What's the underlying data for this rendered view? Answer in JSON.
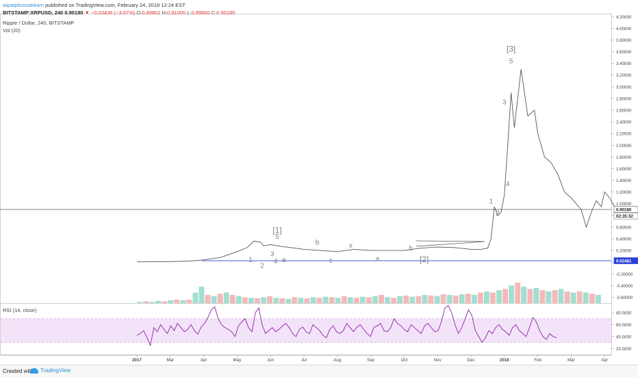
{
  "header": {
    "author": "wipatphossakkarn",
    "published": " published on TradingView.com, February 24, 2018 12:24 EST",
    "symbol": "BITSTAMP:XRPUSD, 240",
    "last": "0.90180",
    "change": "▼ −0.03436 (−3.67%)",
    "o_label": "O:",
    "o_value": "0.89801",
    "h_label": "H:",
    "h_value": "0.91000",
    "l_label": "L:",
    "l_value": "0.89600",
    "c_label": "C:",
    "c_value": "0.90180"
  },
  "main_pane": {
    "title": "Ripple / Dollar, 240, BITSTAMP",
    "volume_label": "Vol (20)"
  },
  "rsi_pane": {
    "title": "RSI (14, close)"
  },
  "footer": {
    "created_with": "Created with",
    "brand": "TradingView"
  },
  "colors": {
    "price_line": "#555555",
    "support_line": "#2a3fd6",
    "rsi_line": "#8e1ea8",
    "rsi_band": "#f3e3f8",
    "vol_up": "#82d4c2",
    "vol_down": "#f1a1a1",
    "wave_labels": "#808080"
  },
  "chart_data": [
    {
      "type": "line",
      "title": "Ripple / Dollar, 240, BITSTAMP",
      "x_ticks": [
        "2017",
        "Mar",
        "Apr",
        "May",
        "Jun",
        "Jul",
        "Aug",
        "Sep",
        "Oct",
        "Nov",
        "Dec",
        "2018",
        "Feb",
        "Mar",
        "Apr"
      ],
      "y_ticks": [
        "-0.60000",
        "-0.40000",
        "-0.20000",
        "0.00000",
        "0.20000",
        "0.40000",
        "0.60000",
        "0.80000",
        "1.00000",
        "1.20000",
        "1.40000",
        "1.60000",
        "1.80000",
        "2.00000",
        "2.20000",
        "2.40000",
        "2.60000",
        "2.80000",
        "3.00000",
        "3.20000",
        "3.40000",
        "3.60000",
        "3.80000",
        "4.00000",
        "4.20000"
      ],
      "ylim": [
        -0.7,
        4.25
      ],
      "series": [
        {
          "x": [
            0,
            0.6,
            1.0,
            1.6,
            2.0,
            2.5,
            3.0,
            3.3,
            3.5,
            3.7,
            3.8,
            4.0,
            4.3,
            4.6,
            5.0,
            5.5,
            6.0,
            6.5,
            7.0,
            7.5,
            8.0,
            8.5,
            9.0,
            9.5,
            10.0,
            10.3,
            10.5,
            10.6,
            10.7,
            10.8,
            10.9,
            11.0,
            11.1,
            11.2,
            11.3,
            11.5,
            11.7,
            11.9,
            12.0,
            12.2,
            12.4,
            12.6,
            12.8,
            13.0,
            13.15,
            13.3,
            13.45,
            13.6,
            13.75,
            13.9,
            14.0,
            14.15,
            14.3,
            14.45
          ],
          "values": [
            0.006,
            0.007,
            0.01,
            0.02,
            0.04,
            0.08,
            0.18,
            0.25,
            0.36,
            0.34,
            0.28,
            0.3,
            0.27,
            0.25,
            0.22,
            0.2,
            0.18,
            0.22,
            0.2,
            0.2,
            0.2,
            0.24,
            0.26,
            0.25,
            0.22,
            0.22,
            0.24,
            0.4,
            0.95,
            0.8,
            0.85,
            1.15,
            2.0,
            2.9,
            2.3,
            3.3,
            2.5,
            2.6,
            2.2,
            1.8,
            1.7,
            1.5,
            1.2,
            1.1,
            1.0,
            0.9,
            0.6,
            0.85,
            1.05,
            0.95,
            1.2,
            1.1,
            0.95,
            0.9018
          ]
        }
      ],
      "horizontal_lines": [
        {
          "label": "0.90180",
          "value": 0.9018,
          "color": "#555555"
        },
        {
          "label": "0.02481",
          "value": 0.02481,
          "color": "#2a3fd6"
        }
      ],
      "countdown": "02:35:32",
      "annotations": [
        {
          "text": "1",
          "x": 3.4,
          "y": 0.0
        },
        {
          "text": "2",
          "x": 3.75,
          "y": -0.1
        },
        {
          "text": "3",
          "x": 4.05,
          "y": 0.1
        },
        {
          "text": "4",
          "x": 4.15,
          "y": -0.02
        },
        {
          "text": "5",
          "x": 4.2,
          "y": 0.4
        },
        {
          "text": "[1]",
          "x": 4.2,
          "y": 0.5
        },
        {
          "text": "a",
          "x": 4.4,
          "y": 0.0
        },
        {
          "text": "b",
          "x": 5.4,
          "y": 0.3
        },
        {
          "text": "c",
          "x": 5.8,
          "y": -0.01
        },
        {
          "text": "x",
          "x": 6.4,
          "y": 0.25
        },
        {
          "text": "a",
          "x": 7.2,
          "y": 0.02
        },
        {
          "text": "b",
          "x": 8.2,
          "y": 0.2
        },
        {
          "text": "[2]",
          "x": 8.6,
          "y": 0.0
        },
        {
          "text": "1",
          "x": 10.6,
          "y": 1.0
        },
        {
          "text": "2",
          "x": 10.8,
          "y": 0.8
        },
        {
          "text": "3",
          "x": 11.0,
          "y": 2.7
        },
        {
          "text": "4",
          "x": 11.1,
          "y": 1.3
        },
        {
          "text": "5",
          "x": 11.2,
          "y": 3.4
        },
        {
          "text": "[3]",
          "x": 11.2,
          "y": 3.6
        }
      ]
    },
    {
      "type": "bar",
      "title": "Vol (20)",
      "values": [
        2,
        3,
        2,
        4,
        3,
        5,
        6,
        5,
        6,
        18,
        28,
        14,
        12,
        16,
        18,
        14,
        12,
        10,
        9,
        8,
        10,
        12,
        9,
        8,
        7,
        10,
        9,
        8,
        10,
        9,
        11,
        10,
        9,
        12,
        10,
        9,
        11,
        10,
        12,
        14,
        10,
        9,
        12,
        13,
        11,
        12,
        14,
        13,
        12,
        15,
        14,
        13,
        15,
        16,
        14,
        18,
        20,
        18,
        22,
        24,
        30,
        35,
        28,
        24,
        26,
        22,
        20,
        22,
        24,
        20,
        18,
        20,
        18,
        16,
        14
      ],
      "directions": [
        "u",
        "d",
        "u",
        "u",
        "d",
        "u",
        "d",
        "u",
        "d",
        "u",
        "u",
        "d",
        "u",
        "d",
        "u",
        "d",
        "u",
        "d",
        "u",
        "d",
        "u",
        "d",
        "u",
        "d",
        "u",
        "d",
        "u",
        "d",
        "u",
        "d",
        "u",
        "d",
        "u",
        "d",
        "u",
        "d",
        "u",
        "d",
        "u",
        "d",
        "u",
        "d",
        "u",
        "d",
        "u",
        "d",
        "u",
        "d",
        "u",
        "d",
        "u",
        "d",
        "u",
        "d",
        "u",
        "d",
        "u",
        "d",
        "u",
        "d",
        "u",
        "d",
        "u",
        "d",
        "u",
        "d",
        "u",
        "d",
        "u",
        "d",
        "u",
        "d",
        "u",
        "d",
        "u"
      ]
    },
    {
      "type": "line",
      "title": "RSI (14, close)",
      "y_ticks": [
        "20.0000",
        "40.0000",
        "60.0000",
        "80.0000"
      ],
      "ylim": [
        10,
        95
      ],
      "band": [
        30,
        70
      ],
      "series": [
        {
          "values": [
            42,
            45,
            50,
            38,
            25,
            55,
            48,
            60,
            52,
            45,
            58,
            50,
            62,
            55,
            48,
            52,
            60,
            50,
            44,
            56,
            62,
            72,
            85,
            90,
            70,
            60,
            55,
            52,
            48,
            40,
            58,
            65,
            70,
            55,
            48,
            80,
            88,
            60,
            45,
            50,
            55,
            48,
            52,
            58,
            62,
            55,
            45,
            40,
            52,
            56,
            48,
            45,
            60,
            55,
            50,
            42,
            38,
            52,
            58,
            48,
            45,
            50,
            62,
            55,
            48,
            56,
            60,
            52,
            45,
            40,
            55,
            58,
            62,
            50,
            48,
            55,
            70,
            62,
            58,
            52,
            48,
            60,
            55,
            50,
            45,
            58,
            62,
            55,
            48,
            50,
            65,
            88,
            92,
            80,
            60,
            45,
            55,
            70,
            85,
            75,
            50,
            40,
            30,
            38,
            50,
            45,
            55,
            60,
            52,
            48,
            42,
            55,
            60,
            50,
            45,
            40,
            55,
            72,
            65,
            50,
            40,
            35,
            45,
            40,
            38
          ]
        }
      ]
    }
  ]
}
